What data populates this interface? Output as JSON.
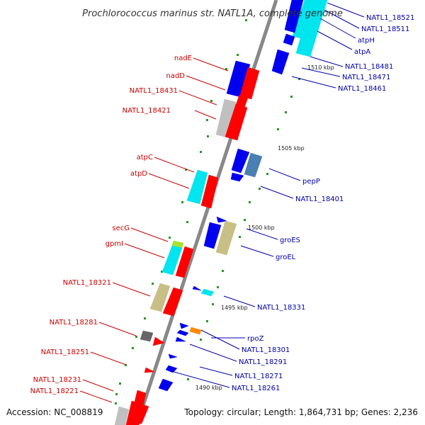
{
  "title": "Prochlorococcus marinus str. NATL1A, complete genome",
  "footer": {
    "accession": "Accession: NC_008819",
    "topology": "Topology: circular; Length: 1,864,731 bp; Genes: 2,236"
  },
  "colors": {
    "backbone": "#888888",
    "red": "#ff0000",
    "blue": "#0000ee",
    "cyan": "#00e5ee",
    "tan": "#c8bf86",
    "steel": "#4a7fb2",
    "gray": "#c0c0c0",
    "dark": "#666666",
    "orange": "#ff8800",
    "lime": "#a6e22e",
    "dot": "#229922",
    "label_red": "#cc0000",
    "label_blue": "#0000aa"
  },
  "ticks": [
    "1510 kbp",
    "1505 kbp",
    "1500 kbp",
    "1495 kbp",
    "1490 kbp"
  ],
  "left_labels": [
    "nadE",
    "nadD",
    "NATL1_18431",
    "NATL1_18421",
    "atpC",
    "atpD",
    "secG",
    "gpmI",
    "NATL1_18321",
    "NATL1_18281",
    "NATL1_18251",
    "NATL1_18231",
    "NATL1_18221"
  ],
  "right_labels": [
    "NATL1_18521",
    "NATL1_18511",
    "atpH",
    "atpA",
    "NATL1_18481",
    "NATL1_18471",
    "NATL1_18461",
    "pepP",
    "NATL1_18401",
    "groES",
    "groEL",
    "NATL1_18331",
    "rpoZ",
    "NATL1_18301",
    "NATL1_18291",
    "NATL1_18271",
    "NATL1_18261"
  ]
}
